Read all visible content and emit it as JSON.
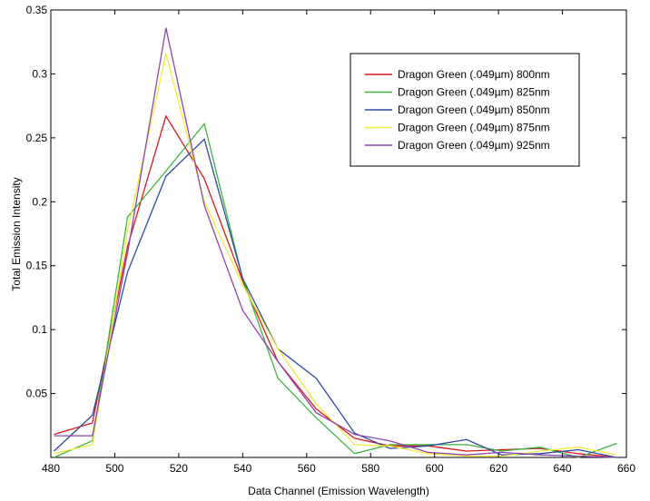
{
  "chart_data": {
    "type": "line",
    "title": "",
    "xlabel": "Data Channel (Emission Wavelength)",
    "ylabel": "Total Emission Intensity",
    "xlim": [
      480,
      660
    ],
    "ylim": [
      0,
      0.35
    ],
    "xticks": [
      480,
      500,
      520,
      540,
      560,
      580,
      600,
      620,
      640,
      660
    ],
    "xtick_labels": [
      "480",
      "500",
      "520",
      "540",
      "560",
      "580",
      "600",
      "620",
      "640",
      "660"
    ],
    "yticks": [
      0.05,
      0.1,
      0.15,
      0.2,
      0.25,
      0.3,
      0.35
    ],
    "ytick_labels": [
      "0.05",
      "0.1",
      "0.15",
      "0.2",
      "0.25",
      "0.3",
      "0.35"
    ],
    "grid": false,
    "legend_position": "top-right",
    "x": [
      481,
      493,
      504,
      516,
      528,
      540,
      551,
      563,
      575,
      586,
      598,
      610,
      621,
      633,
      645,
      657
    ],
    "series": [
      {
        "name": "Dragon Green (.049µm) 800nm",
        "color": "#d7191c",
        "values": [
          0.018,
          0.027,
          0.165,
          0.267,
          0.218,
          0.138,
          0.075,
          0.038,
          0.015,
          0.009,
          0.009,
          0.005,
          0.006,
          0.007,
          0.003,
          0.0
        ]
      },
      {
        "name": "Dragon Green (.049µm) 825nm",
        "color": "#3cb43c",
        "values": [
          0.0,
          0.013,
          0.188,
          0.224,
          0.261,
          0.14,
          0.062,
          0.031,
          0.003,
          0.01,
          0.01,
          0.01,
          0.005,
          0.008,
          0.0,
          0.011
        ]
      },
      {
        "name": "Dragon Green (.049µm) 850nm",
        "color": "#2c4ba0",
        "values": [
          0.005,
          0.033,
          0.145,
          0.22,
          0.249,
          0.14,
          0.085,
          0.062,
          0.019,
          0.007,
          0.009,
          0.014,
          0.002,
          0.003,
          0.006,
          0.0
        ]
      },
      {
        "name": "Dragon Green (.049µm) 875nm",
        "color": "#f5eb3c",
        "values": [
          0.003,
          0.01,
          0.177,
          0.316,
          0.2,
          0.135,
          0.085,
          0.042,
          0.01,
          0.009,
          0.003,
          0.001,
          0.001,
          0.005,
          0.008,
          0.002
        ]
      },
      {
        "name": "Dragon Green (.049µm) 925nm",
        "color": "#8e44ad",
        "values": [
          0.017,
          0.017,
          0.16,
          0.336,
          0.197,
          0.115,
          0.075,
          0.035,
          0.018,
          0.013,
          0.004,
          0.002,
          0.004,
          0.002,
          0.001,
          0.0
        ]
      }
    ]
  }
}
